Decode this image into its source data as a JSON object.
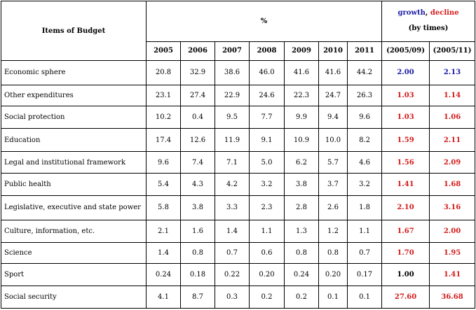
{
  "header": {
    "items_label": "Items of Budget",
    "percent_label": "%",
    "growth_word": "growth",
    "comma": ",",
    "decline_word": "decline",
    "by_times": "(by times)"
  },
  "columns": {
    "years": [
      "2005",
      "2006",
      "2007",
      "2008",
      "2009",
      "2010",
      "2011"
    ],
    "ratio_0509": "(2005/09)",
    "ratio_0511": "(2005/11)"
  },
  "colors": {
    "growth": "#1a1aa8",
    "decline": "#d41a1a",
    "neutral": "#000000"
  },
  "rows": [
    {
      "label": "Economic sphere",
      "values": [
        "20.8",
        "32.9",
        "38.6",
        "46.0",
        "41.6",
        "41.6",
        "44.2"
      ],
      "r1": "2.00",
      "r1c": "blue",
      "r2": "2.13",
      "r2c": "blue"
    },
    {
      "label": "Other expenditures",
      "values": [
        "23.1",
        "27.4",
        "22.9",
        "24.6",
        "22.3",
        "24.7",
        "26.3"
      ],
      "r1": "1.03",
      "r1c": "red",
      "r2": "1.14",
      "r2c": "red"
    },
    {
      "label": "Social protection",
      "values": [
        "10.2",
        "0.4",
        "9.5",
        "7.7",
        "9.9",
        "9.4",
        "9.6"
      ],
      "r1": "1.03",
      "r1c": "red",
      "r2": "1.06",
      "r2c": "red"
    },
    {
      "label": "Education",
      "values": [
        "17.4",
        "12.6",
        "11.9",
        "9.1",
        "10.9",
        "10.0",
        "8.2"
      ],
      "r1": "1.59",
      "r1c": "red",
      "r2": "2.11",
      "r2c": "red"
    },
    {
      "label": "Legal and institutional framework",
      "values": [
        "9.6",
        "7.4",
        "7.1",
        "5.0",
        "6.2",
        "5.7",
        "4.6"
      ],
      "r1": "1.56",
      "r1c": "red",
      "r2": "2.09",
      "r2c": "red"
    },
    {
      "label": "Public health",
      "values": [
        "5.4",
        "4.3",
        "4.2",
        "3.2",
        "3.8",
        "3.7",
        "3.2"
      ],
      "r1": "1.41",
      "r1c": "red",
      "r2": "1.68",
      "r2c": "red"
    },
    {
      "label": "Legislative, executive and state power",
      "values": [
        "5.8",
        "3.8",
        "3.3",
        "2.3",
        "2.8",
        "2.6",
        "1.8"
      ],
      "r1": "2.10",
      "r1c": "red",
      "r2": "3.16",
      "r2c": "red"
    },
    {
      "label": "Culture, information, etc.",
      "values": [
        "2.1",
        "1.6",
        "1.4",
        "1.1",
        "1.3",
        "1.2",
        "1.1"
      ],
      "r1": "1.67",
      "r1c": "red",
      "r2": "2.00",
      "r2c": "red"
    },
    {
      "label": "Science",
      "values": [
        "1.4",
        "0.8",
        "0.7",
        "0.6",
        "0.8",
        "0.8",
        "0.7"
      ],
      "r1": "1.70",
      "r1c": "red",
      "r2": "1.95",
      "r2c": "red"
    },
    {
      "label": "Sport",
      "values": [
        "0.24",
        "0.18",
        "0.22",
        "0.20",
        "0.24",
        "0.20",
        "0.17"
      ],
      "r1": "1.00",
      "r1c": "black",
      "r2": "1.41",
      "r2c": "red"
    },
    {
      "label": "Social security",
      "values": [
        "4.1",
        "8.7",
        "0.3",
        "0.2",
        "0.2",
        "0.1",
        "0.1"
      ],
      "r1": "27.60",
      "r1c": "red",
      "r2": "36.68",
      "r2c": "red"
    }
  ]
}
